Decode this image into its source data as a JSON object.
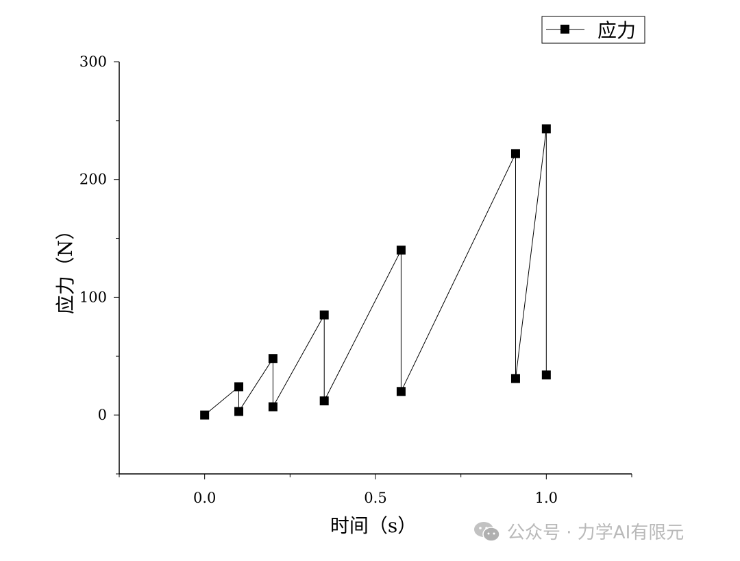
{
  "chart_data": {
    "type": "line",
    "xlabel": "时间（s）",
    "ylabel": "应力（N）",
    "legend": {
      "position": "top-right",
      "label": "应力"
    },
    "xlim": [
      -0.25,
      1.25
    ],
    "ylim": [
      -50,
      300
    ],
    "x_ticks": [
      0.0,
      0.5,
      1.0
    ],
    "x_tick_labels": [
      "0.0",
      "0.5",
      "1.0"
    ],
    "y_ticks": [
      0,
      100,
      200,
      300
    ],
    "y_tick_labels": [
      "0",
      "100",
      "200",
      "300"
    ],
    "grid": false,
    "marker": "square",
    "series": [
      {
        "name": "应力",
        "color": "#000000",
        "points": [
          {
            "x": 0.0,
            "y": 0
          },
          {
            "x": 0.1,
            "y": 24
          },
          {
            "x": 0.1,
            "y": 3
          },
          {
            "x": 0.2,
            "y": 48
          },
          {
            "x": 0.2,
            "y": 7
          },
          {
            "x": 0.35,
            "y": 85
          },
          {
            "x": 0.35,
            "y": 12
          },
          {
            "x": 0.575,
            "y": 140
          },
          {
            "x": 0.575,
            "y": 20
          },
          {
            "x": 0.91,
            "y": 222
          },
          {
            "x": 0.91,
            "y": 31
          },
          {
            "x": 1.0,
            "y": 243
          },
          {
            "x": 1.0,
            "y": 34
          }
        ]
      }
    ]
  },
  "watermark": {
    "text": "公众号 · 力学AI有限元",
    "icon": "wechat-icon"
  }
}
